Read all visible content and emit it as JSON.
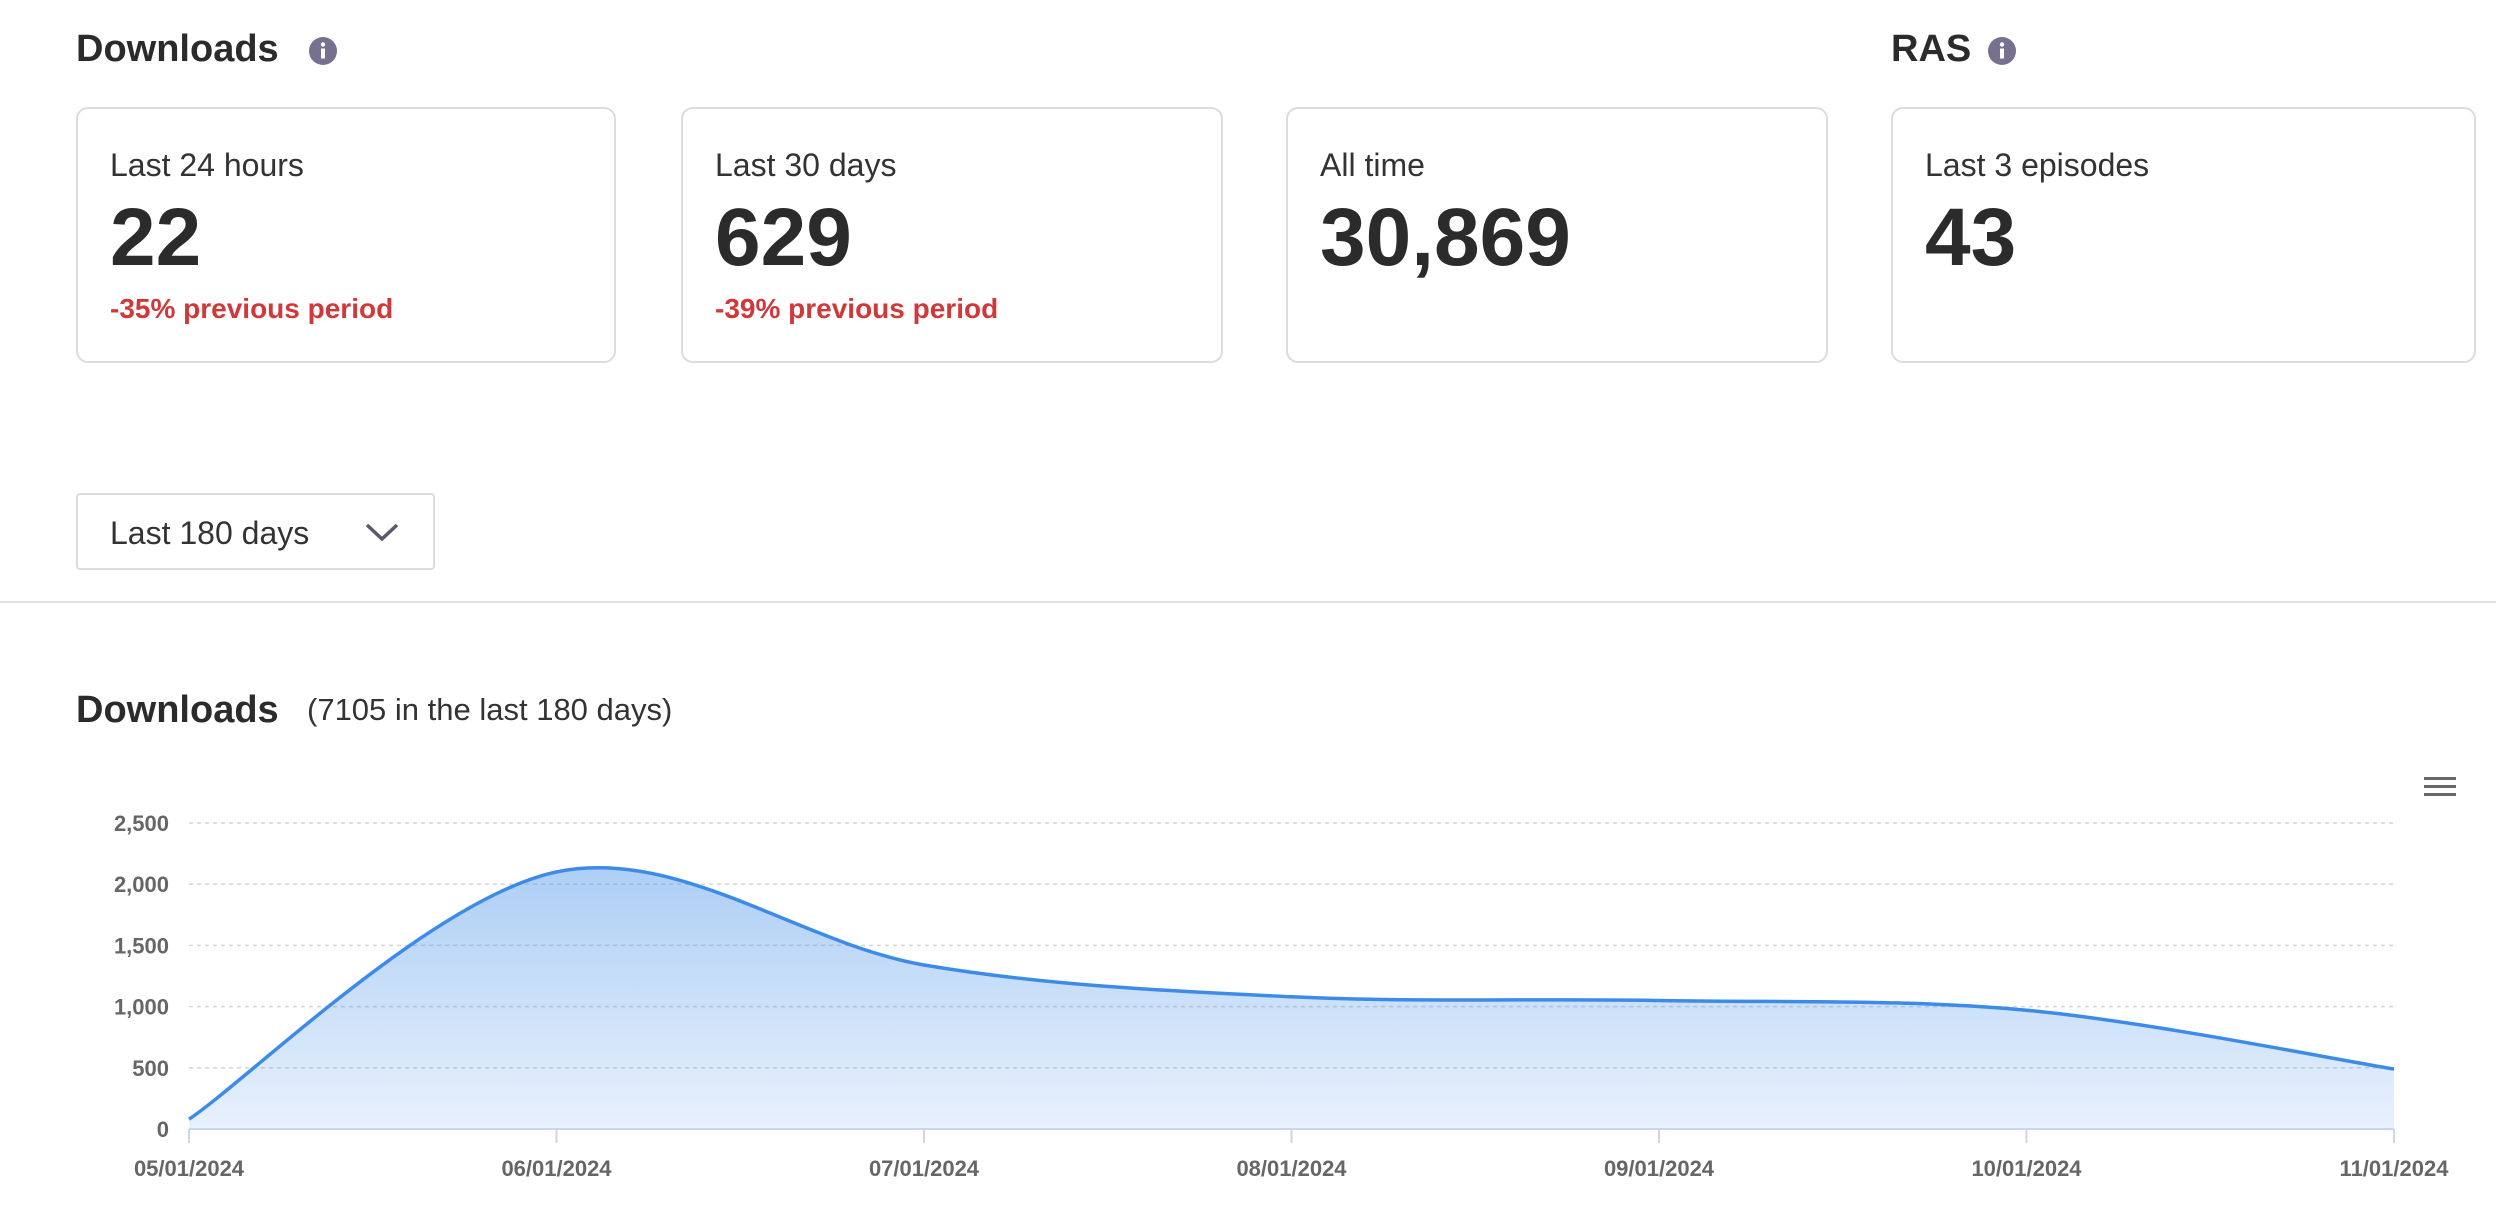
{
  "header": {
    "title": "Downloads",
    "side_title": "RAS"
  },
  "cards": [
    {
      "label": "Last 24 hours",
      "value": "22",
      "change": "-35% previous period"
    },
    {
      "label": "Last 30 days",
      "value": "629",
      "change": "-39% previous period"
    },
    {
      "label": "All time",
      "value": "30,869"
    },
    {
      "label": "Last 3 episodes",
      "value": "43"
    }
  ],
  "dropdown": {
    "label": "Last 180 days"
  },
  "chart_data": {
    "type": "area",
    "title": "Downloads",
    "subtitle": "(7105 in the last 180 days)",
    "categories": [
      "05/01/2024",
      "06/01/2024",
      "07/01/2024",
      "08/01/2024",
      "09/01/2024",
      "10/01/2024",
      "11/01/2024"
    ],
    "values": [
      80,
      2100,
      1340,
      1080,
      1050,
      970,
      490
    ],
    "color": "#3d8be8",
    "ylim": [
      0,
      2500
    ],
    "yticks": [
      0,
      500,
      {
        "value": 1000,
        "label": "1,000"
      },
      {
        "value": 1500,
        "label": "1,500"
      },
      {
        "value": 2000,
        "label": "2,000"
      },
      {
        "value": 2500,
        "label": "2,500"
      }
    ],
    "grid": true
  }
}
